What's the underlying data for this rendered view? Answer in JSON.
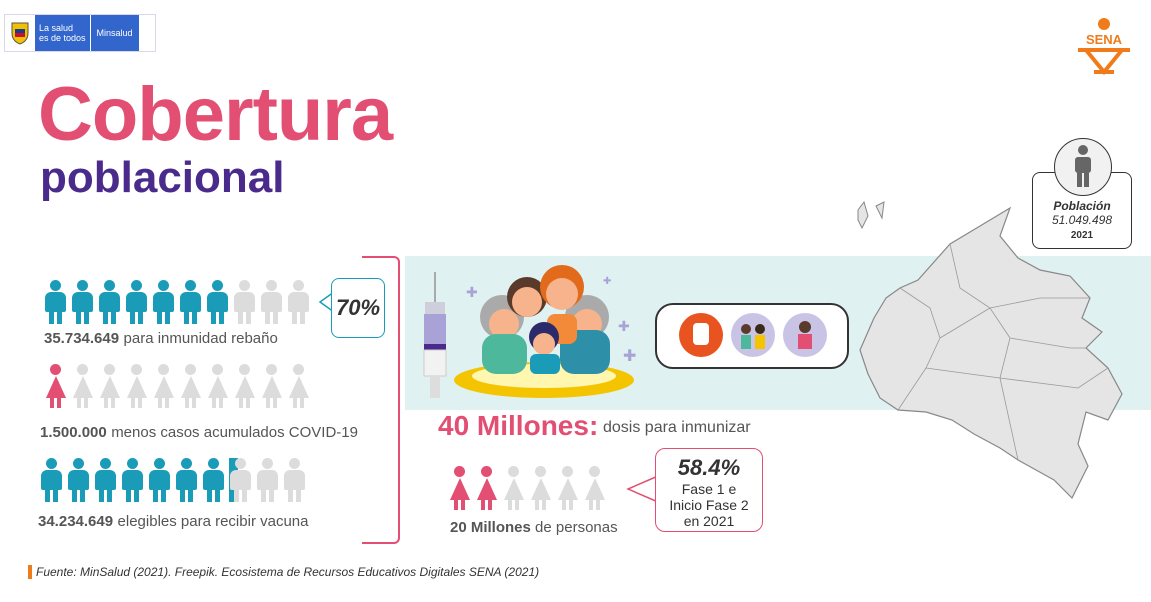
{
  "header": {
    "gov_line1": "La salud",
    "gov_line2": "es de todos",
    "gov_ministry": "Minsalud",
    "sena_logo": "SENA"
  },
  "title": {
    "main": "Cobertura",
    "sub": "poblacional"
  },
  "stats": [
    {
      "number": "35.734.649",
      "label": "para inmunidad rebaño",
      "percent": "70%",
      "filled": 7,
      "total": 10
    },
    {
      "number": "1.500.000",
      "label": "menos casos acumulados COVID-19",
      "filled": 1,
      "total": 10
    },
    {
      "number": "34.234.649",
      "label": "elegibles para recibir vacuna",
      "filled": 7.5,
      "total": 10
    }
  ],
  "doses": {
    "big": "40 Millones:",
    "text": "dosis para inmunizar"
  },
  "people20": {
    "number": "20 Millones",
    "text": "de personas",
    "filled": 2,
    "total": 6,
    "percent": "58.4%",
    "line1": "Fase 1 e",
    "line2": "Inicio Fase 2",
    "line3": "en 2021"
  },
  "population": {
    "label": "Población",
    "value": "51.049.498",
    "year": "2021"
  },
  "source": "Fuente: MinSalud (2021). Freepik. Ecosistema de Recursos Educativos Digitales SENA (2021)",
  "colors": {
    "teal": "#1a9cb8",
    "pink": "#e24f72",
    "purple": "#4a2b8c",
    "orange": "#f07b1b"
  },
  "icons": [
    "colombia-shield-icon",
    "sena-logo-icon",
    "syringe-icon",
    "family-icon",
    "stop-hand-icon",
    "people-icon",
    "person-icon",
    "colombia-map-icon"
  ]
}
